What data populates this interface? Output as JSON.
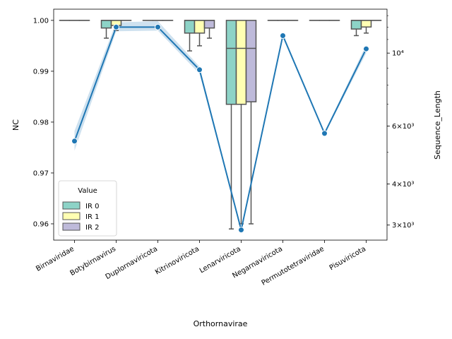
{
  "chart_data": {
    "type": "box+line",
    "xlabel": "Orthornavirae",
    "ylabel_left": "NC",
    "ylabel_right": "Sequence_Length",
    "categories": [
      "Birnaviridae",
      "Botybirnavirus",
      "Duplornaviricota",
      "Kitrinoviricota",
      "Lenarviricota",
      "Negarnaviricota",
      "Permutotetraviridae",
      "Pisuviricota"
    ],
    "left_axis": {
      "ylim": [
        0.9568,
        1.0022
      ],
      "ticks": [
        0.96,
        0.97,
        0.98,
        0.99,
        1.0
      ],
      "tick_labels": [
        "0.96",
        "0.97",
        "0.98",
        "0.99",
        "1.00"
      ]
    },
    "right_axis": {
      "scale": "log",
      "ylim": [
        2700,
        13600
      ],
      "major_ticks": [
        3000,
        4000,
        6000,
        10000
      ],
      "major_tick_labels": [
        "3×10³",
        "4×10³",
        "6×10³",
        "10⁴"
      ]
    },
    "legend": {
      "title": "Value",
      "placement": "lower-left",
      "entries": [
        "IR 0",
        "IR 1",
        "IR 2"
      ],
      "colors": [
        "#8dd3c7",
        "#ffffb3",
        "#bebada"
      ]
    },
    "box_series": [
      {
        "name": "IR 0",
        "boxes": [
          {
            "q1": 1.0,
            "median": 1.0,
            "q3": 1.0,
            "whislo": 1.0,
            "whishi": 1.0
          },
          {
            "q1": 0.9985,
            "median": 1.0,
            "q3": 1.0,
            "whislo": 0.9965,
            "whishi": 1.0
          },
          {
            "q1": 1.0,
            "median": 1.0,
            "q3": 1.0,
            "whislo": 1.0,
            "whishi": 1.0
          },
          {
            "q1": 0.9975,
            "median": 1.0,
            "q3": 1.0,
            "whislo": 0.994,
            "whishi": 1.0
          },
          {
            "q1": 0.9835,
            "median": 0.9945,
            "q3": 1.0,
            "whislo": 0.959,
            "whishi": 1.0
          },
          {
            "q1": 1.0,
            "median": 1.0,
            "q3": 1.0,
            "whislo": 1.0,
            "whishi": 1.0
          },
          {
            "q1": 1.0,
            "median": 1.0,
            "q3": 1.0,
            "whislo": 1.0,
            "whishi": 1.0
          },
          {
            "q1": 0.9983,
            "median": 1.0,
            "q3": 1.0,
            "whislo": 0.997,
            "whishi": 1.0
          }
        ]
      },
      {
        "name": "IR 1",
        "boxes": [
          {
            "q1": 1.0,
            "median": 1.0,
            "q3": 1.0,
            "whislo": 1.0,
            "whishi": 1.0
          },
          {
            "q1": 0.999,
            "median": 1.0,
            "q3": 1.0,
            "whislo": 0.998,
            "whishi": 1.0
          },
          {
            "q1": 1.0,
            "median": 1.0,
            "q3": 1.0,
            "whislo": 1.0,
            "whishi": 1.0
          },
          {
            "q1": 0.9975,
            "median": 1.0,
            "q3": 1.0,
            "whislo": 0.995,
            "whishi": 1.0
          },
          {
            "q1": 0.9835,
            "median": 0.9945,
            "q3": 1.0,
            "whislo": 0.96,
            "whishi": 1.0
          },
          {
            "q1": 1.0,
            "median": 1.0,
            "q3": 1.0,
            "whislo": 1.0,
            "whishi": 1.0
          },
          {
            "q1": 1.0,
            "median": 1.0,
            "q3": 1.0,
            "whislo": 1.0,
            "whishi": 1.0
          },
          {
            "q1": 0.9987,
            "median": 1.0,
            "q3": 1.0,
            "whislo": 0.9975,
            "whishi": 1.0
          }
        ]
      },
      {
        "name": "IR 2",
        "boxes": [
          {
            "q1": 1.0,
            "median": 1.0,
            "q3": 1.0,
            "whislo": 1.0,
            "whishi": 1.0
          },
          {
            "q1": 1.0,
            "median": 1.0,
            "q3": 1.0,
            "whislo": 1.0,
            "whishi": 1.0
          },
          {
            "q1": 1.0,
            "median": 1.0,
            "q3": 1.0,
            "whislo": 1.0,
            "whishi": 1.0
          },
          {
            "q1": 0.9985,
            "median": 1.0,
            "q3": 1.0,
            "whislo": 0.9965,
            "whishi": 1.0
          },
          {
            "q1": 0.984,
            "median": 0.9945,
            "q3": 1.0,
            "whislo": 0.96,
            "whishi": 1.0
          },
          {
            "q1": 1.0,
            "median": 1.0,
            "q3": 1.0,
            "whislo": 1.0,
            "whishi": 1.0
          },
          {
            "q1": 1.0,
            "median": 1.0,
            "q3": 1.0,
            "whislo": 1.0,
            "whishi": 1.0
          },
          {
            "q1": 1.0,
            "median": 1.0,
            "q3": 1.0,
            "whislo": 1.0,
            "whishi": 1.0
          }
        ]
      }
    ],
    "line_series": {
      "axis": "right",
      "color": "#1f77b4",
      "values": [
        5400,
        12000,
        12000,
        8900,
        2900,
        11300,
        5700,
        10300
      ],
      "ci_low": [
        5050,
        11650,
        11700,
        8650,
        2880,
        11250,
        5650,
        10000
      ],
      "ci_high": [
        5800,
        12400,
        12500,
        9100,
        2920,
        11350,
        5750,
        10600
      ]
    }
  }
}
